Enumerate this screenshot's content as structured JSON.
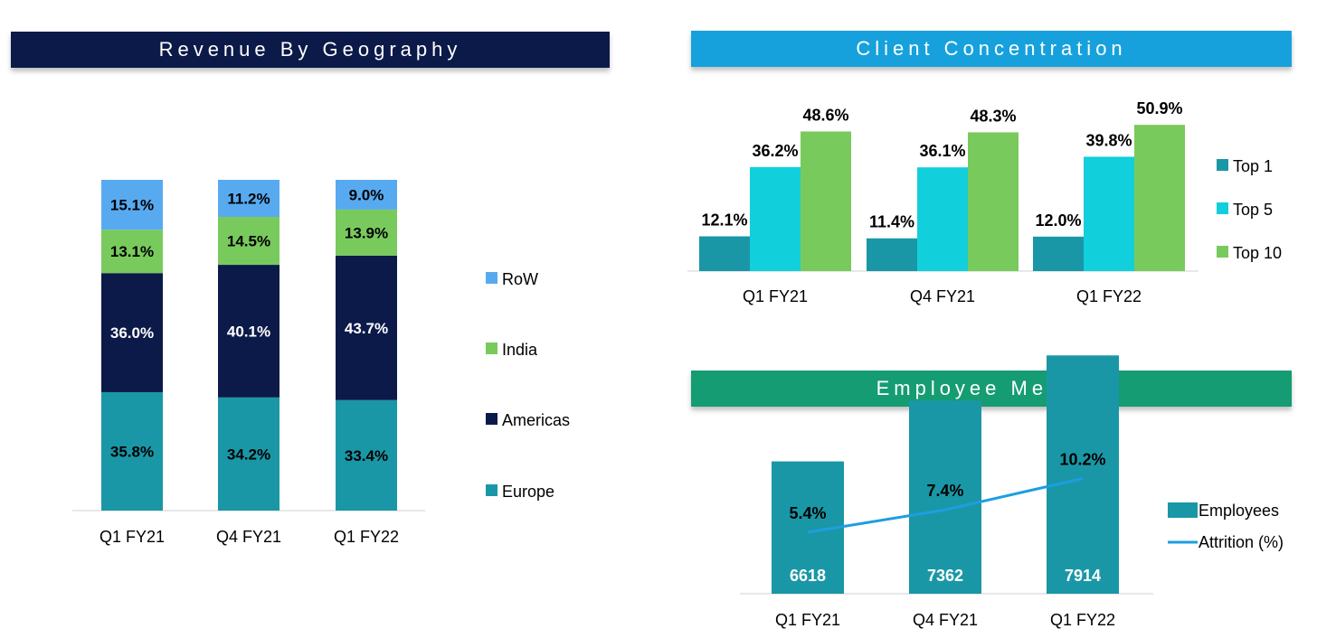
{
  "colors": {
    "navy": "#0c1a49",
    "teal": "#1a97a6",
    "cyan": "#12cfdc",
    "green": "#79ca5d",
    "skyblue": "#58aaf0",
    "lineblue": "#1e9ee0",
    "banner_geo": "#0c1a49",
    "banner_client": "#16a1dd",
    "banner_emp": "#159c72"
  },
  "banners": {
    "geography": "Revenue By Geography",
    "client": "Client Concentration",
    "employee": "Employee Metrics"
  },
  "chart_data": [
    {
      "type": "bar",
      "stacked": true,
      "title": "Revenue By Geography",
      "categories": [
        "Q1 FY21",
        "Q4 FY21",
        "Q1 FY22"
      ],
      "series": [
        {
          "name": "Europe",
          "color": "#1a97a6",
          "values": [
            35.8,
            34.2,
            33.4
          ],
          "labels": [
            "35.8%",
            "34.2%",
            "33.4%"
          ]
        },
        {
          "name": "Americas",
          "color": "#0c1a49",
          "values": [
            36.0,
            40.1,
            43.7
          ],
          "labels": [
            "36.0%",
            "40.1%",
            "43.7%"
          ]
        },
        {
          "name": "India",
          "color": "#79ca5d",
          "values": [
            13.1,
            14.5,
            13.9
          ],
          "labels": [
            "13.1%",
            "14.5%",
            "13.9%"
          ]
        },
        {
          "name": "RoW",
          "color": "#58aaf0",
          "values": [
            15.1,
            11.2,
            9.0
          ],
          "labels": [
            "15.1%",
            "11.2%",
            "9.0%"
          ]
        }
      ],
      "legend": [
        "RoW",
        "India",
        "Americas",
        "Europe"
      ],
      "legend_position": "right"
    },
    {
      "type": "bar",
      "title": "Client Concentration",
      "categories": [
        "Q1 FY21",
        "Q4 FY21",
        "Q1 FY22"
      ],
      "series": [
        {
          "name": "Top 1",
          "color": "#1a97a6",
          "values": [
            12.1,
            11.4,
            12.0
          ],
          "labels": [
            "12.1%",
            "11.4%",
            "12.0%"
          ]
        },
        {
          "name": "Top 5",
          "color": "#12cfdc",
          "values": [
            36.2,
            36.1,
            39.8
          ],
          "labels": [
            "36.2%",
            "36.1%",
            "39.8%"
          ]
        },
        {
          "name": "Top 10",
          "color": "#79ca5d",
          "values": [
            48.6,
            48.3,
            50.9
          ],
          "labels": [
            "48.6%",
            "48.3%",
            "50.9%"
          ]
        }
      ],
      "legend_position": "right"
    },
    {
      "type": "bar",
      "title": "Employee Metrics",
      "categories": [
        "Q1 FY21",
        "Q4 FY21",
        "Q1 FY22"
      ],
      "series": [
        {
          "name": "Employees",
          "type": "bar",
          "color": "#1a97a6",
          "values": [
            6618,
            7362,
            7914
          ],
          "labels": [
            "6618",
            "7362",
            "7914"
          ]
        },
        {
          "name": "Attrition (%)",
          "type": "line",
          "color": "#1e9ee0",
          "values": [
            5.4,
            7.4,
            10.2
          ],
          "labels": [
            "5.4%",
            "7.4%",
            "10.2%"
          ]
        }
      ],
      "legend_position": "right"
    }
  ]
}
